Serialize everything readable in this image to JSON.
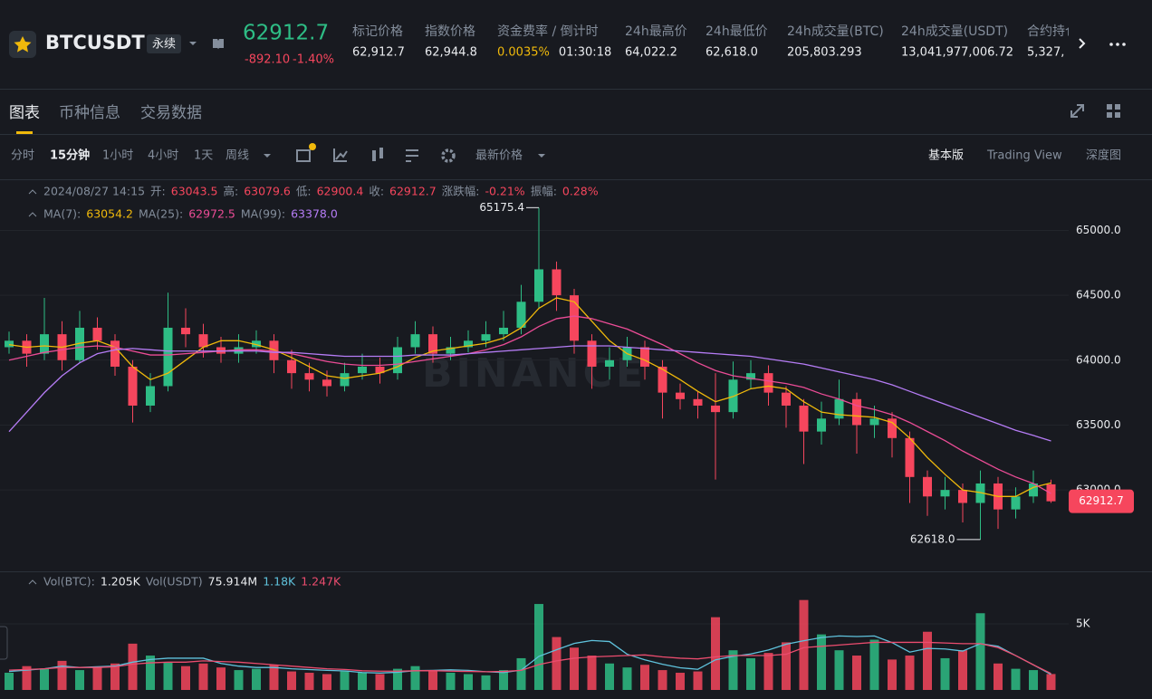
{
  "header": {
    "symbol": "BTCUSDT",
    "badge": "永续",
    "price": "62912.7",
    "change": "-892.10",
    "change_pct": "-1.40%",
    "stats": [
      {
        "label": "标记价格",
        "value": "62,912.7"
      },
      {
        "label": "指数价格",
        "value": "62,944.8"
      },
      {
        "label": "资金费率 / 倒计时",
        "value": "0.0035%",
        "value2": "01:30:18"
      },
      {
        "label": "24h最高价",
        "value": "64,022.2"
      },
      {
        "label": "24h最低价",
        "value": "62,618.0"
      },
      {
        "label": "24h成交量(BTC)",
        "value": "205,803.293"
      },
      {
        "label": "24h成交量(USDT)",
        "value": "13,041,977,006.72"
      },
      {
        "label": "合约持仓",
        "value": "5,327,"
      }
    ]
  },
  "tabs": [
    "图表",
    "币种信息",
    "交易数据"
  ],
  "toolbar": {
    "intervals": [
      "分时",
      "15分钟",
      "1小时",
      "4小时",
      "1天",
      "周线"
    ],
    "price_type": "最新价格",
    "views": [
      "基本版",
      "Trading View",
      "深度图"
    ]
  },
  "chart_data": {
    "type": "candlestick",
    "watermark": "BINANCE",
    "datetime": "2024/08/27 14:15",
    "info": [
      {
        "label": "开:",
        "value": "63043.5"
      },
      {
        "label": "高:",
        "value": "63079.6"
      },
      {
        "label": "低:",
        "value": "62900.4"
      },
      {
        "label": "收:",
        "value": "62912.7"
      },
      {
        "label": "涨跌幅:",
        "value": "-0.21%"
      },
      {
        "label": "振幅:",
        "value": "0.28%"
      }
    ],
    "up_color": "#2ebd85",
    "down_color": "#f6465d",
    "ylim": [
      62380,
      65380
    ],
    "yticks": [
      {
        "value": 63000,
        "label": "63000.0"
      },
      {
        "value": 63500,
        "label": "63500.0"
      },
      {
        "value": 64000,
        "label": "64000.0"
      },
      {
        "value": 64500,
        "label": "64500.0"
      },
      {
        "value": 65000,
        "label": "65000.0"
      }
    ],
    "extreme_labels": {
      "high": "65175.4",
      "low": "62618.0"
    },
    "ohlc": [
      [
        64100,
        64220,
        64050,
        64150
      ],
      [
        64150,
        64200,
        63950,
        64050
      ],
      [
        64050,
        64480,
        64000,
        64200
      ],
      [
        64200,
        64300,
        63920,
        64000
      ],
      [
        64000,
        64380,
        63980,
        64250
      ],
      [
        64250,
        64330,
        64080,
        64150
      ],
      [
        64150,
        64200,
        63880,
        63950
      ],
      [
        63950,
        64000,
        63520,
        63650
      ],
      [
        63650,
        63900,
        63600,
        63800
      ],
      [
        63800,
        64520,
        63760,
        64250
      ],
      [
        64250,
        64400,
        64100,
        64200
      ],
      [
        64200,
        64280,
        64020,
        64100
      ],
      [
        64100,
        64180,
        63980,
        64050
      ],
      [
        64050,
        64200,
        63980,
        64100
      ],
      [
        64100,
        64230,
        64050,
        64150
      ],
      [
        64150,
        64200,
        63900,
        64000
      ],
      [
        64000,
        64080,
        63780,
        63900
      ],
      [
        63900,
        63980,
        63760,
        63850
      ],
      [
        63850,
        63920,
        63720,
        63800
      ],
      [
        63800,
        63980,
        63760,
        63900
      ],
      [
        63900,
        64050,
        63850,
        63950
      ],
      [
        63950,
        64020,
        63820,
        63900
      ],
      [
        63900,
        64180,
        63850,
        64100
      ],
      [
        64100,
        64300,
        64050,
        64200
      ],
      [
        64200,
        64260,
        63980,
        64050
      ],
      [
        64050,
        64180,
        64000,
        64100
      ],
      [
        64100,
        64230,
        64060,
        64150
      ],
      [
        64150,
        64300,
        64100,
        64200
      ],
      [
        64200,
        64380,
        64150,
        64250
      ],
      [
        64250,
        64580,
        64200,
        64450
      ],
      [
        64450,
        65175.4,
        64400,
        64700
      ],
      [
        64700,
        64760,
        64380,
        64500
      ],
      [
        64500,
        64550,
        64050,
        64150
      ],
      [
        64150,
        64200,
        63780,
        63950
      ],
      [
        63950,
        64100,
        63850,
        64000
      ],
      [
        64000,
        64180,
        63950,
        64100
      ],
      [
        64100,
        64150,
        63850,
        63950
      ],
      [
        63950,
        64000,
        63550,
        63750
      ],
      [
        63750,
        63820,
        63620,
        63700
      ],
      [
        63700,
        63760,
        63550,
        63650
      ],
      [
        63650,
        63900,
        63080,
        63600
      ],
      [
        63600,
        63990,
        63550,
        63850
      ],
      [
        63850,
        64000,
        63780,
        63900
      ],
      [
        63900,
        63960,
        63650,
        63750
      ],
      [
        63750,
        63800,
        63480,
        63650
      ],
      [
        63650,
        63700,
        63200,
        63450
      ],
      [
        63450,
        63680,
        63350,
        63550
      ],
      [
        63550,
        63850,
        63500,
        63700
      ],
      [
        63700,
        63750,
        63280,
        63500
      ],
      [
        63500,
        63650,
        63400,
        63550
      ],
      [
        63550,
        63600,
        63250,
        63400
      ],
      [
        63400,
        63450,
        62900,
        63100
      ],
      [
        63100,
        63150,
        62800,
        62950
      ],
      [
        62950,
        63100,
        62850,
        63000
      ],
      [
        63000,
        63050,
        62750,
        62900
      ],
      [
        62900,
        63150,
        62618.0,
        63050
      ],
      [
        63050,
        63100,
        62700,
        62850
      ],
      [
        62850,
        63020,
        62780,
        62950
      ],
      [
        62950,
        63150,
        62900,
        63050
      ],
      [
        63043.5,
        63079.6,
        62900.4,
        62912.7
      ]
    ],
    "ma": [
      {
        "name": "MA(7):",
        "color": "#f0b90b",
        "value_label": "63054.2",
        "values": [
          64120,
          64100,
          64110,
          64100,
          64130,
          64150,
          64100,
          63950,
          63850,
          63900,
          64000,
          64100,
          64150,
          64150,
          64120,
          64080,
          64020,
          63950,
          63880,
          63860,
          63880,
          63900,
          63950,
          64020,
          64070,
          64090,
          64110,
          64130,
          64170,
          64250,
          64400,
          64480,
          64450,
          64300,
          64150,
          64050,
          64000,
          63930,
          63850,
          63760,
          63680,
          63720,
          63780,
          63800,
          63780,
          63680,
          63600,
          63580,
          63570,
          63560,
          63520,
          63400,
          63250,
          63120,
          63000,
          62980,
          62950,
          62950,
          63020,
          63054.2
        ]
      },
      {
        "name": "MA(25):",
        "color": "#eb4c96",
        "value_label": "62972.5",
        "values": [
          64000,
          64030,
          64060,
          64080,
          64100,
          64110,
          64100,
          64070,
          64040,
          64040,
          64050,
          64060,
          64070,
          64080,
          64080,
          64070,
          64050,
          64020,
          63990,
          63970,
          63960,
          63960,
          63970,
          63990,
          64010,
          64030,
          64050,
          64080,
          64120,
          64180,
          64260,
          64320,
          64340,
          64320,
          64280,
          64240,
          64180,
          64120,
          64050,
          63980,
          63920,
          63880,
          63860,
          63840,
          63820,
          63790,
          63740,
          63700,
          63650,
          63620,
          63580,
          63520,
          63450,
          63380,
          63300,
          63230,
          63160,
          63100,
          63050,
          62972.5
        ]
      },
      {
        "name": "MA(99):",
        "color": "#b57cf5",
        "value_label": "63378.0",
        "values": [
          63450,
          63600,
          63750,
          63880,
          63980,
          64050,
          64080,
          64090,
          64080,
          64070,
          64070,
          64070,
          64070,
          64070,
          64070,
          64060,
          64060,
          64050,
          64040,
          64030,
          64030,
          64030,
          64030,
          64040,
          64040,
          64040,
          64050,
          64060,
          64070,
          64080,
          64090,
          64100,
          64110,
          64110,
          64110,
          64100,
          64090,
          64080,
          64070,
          64060,
          64050,
          64040,
          64030,
          64010,
          63990,
          63970,
          63940,
          63910,
          63880,
          63850,
          63810,
          63760,
          63710,
          63660,
          63610,
          63560,
          63510,
          63460,
          63420,
          63378.0
        ]
      }
    ],
    "volume": {
      "name": "Vol(BTC):",
      "value_label": "1.205K",
      "usdt_name": "Vol(USDT)",
      "usdt_label": "75.914M",
      "ylim": [
        0,
        8900
      ],
      "yticks": [
        {
          "value": 5000,
          "label": "5K"
        }
      ],
      "values": [
        1300,
        1800,
        1600,
        2200,
        1500,
        1700,
        2000,
        3500,
        2600,
        2100,
        1800,
        2000,
        1700,
        1500,
        1600,
        1900,
        1400,
        1300,
        1200,
        1400,
        1300,
        1200,
        1600,
        1800,
        1500,
        1300,
        1200,
        1100,
        1500,
        2400,
        6500,
        4000,
        3200,
        2600,
        2000,
        1700,
        1900,
        1500,
        1300,
        1400,
        5500,
        3000,
        2400,
        2800,
        3600,
        6800,
        4200,
        3000,
        2600,
        3800,
        2300,
        2600,
        4400,
        2400,
        3000,
        5800,
        2000,
        1600,
        1500,
        1205
      ],
      "ma": [
        {
          "color": "#5fc2dc",
          "value_label": "1.18K",
          "values": [
            1400,
            1500,
            1600,
            1800,
            1700,
            1750,
            1800,
            2100,
            2300,
            2400,
            2400,
            2400,
            2000,
            1800,
            1700,
            1700,
            1600,
            1540,
            1480,
            1440,
            1320,
            1280,
            1340,
            1460,
            1480,
            1520,
            1480,
            1380,
            1320,
            1500,
            2540,
            3040,
            3520,
            3740,
            3660,
            2700,
            2280,
            1940,
            1680,
            1560,
            2280,
            2540,
            2720,
            3020,
            3460,
            3720,
            3960,
            4080,
            4040,
            4080,
            3580,
            2860,
            3140,
            3100,
            2940,
            3500,
            3300,
            2600,
            1900,
            1180
          ]
        },
        {
          "color": "#eb4c6e",
          "value_label": "1.247K",
          "values": [
            1500,
            1550,
            1600,
            1700,
            1700,
            1700,
            1750,
            1950,
            2050,
            2100,
            2100,
            2200,
            2150,
            2100,
            2000,
            1900,
            1800,
            1700,
            1600,
            1550,
            1450,
            1420,
            1420,
            1450,
            1460,
            1420,
            1400,
            1380,
            1400,
            1480,
            1920,
            2200,
            2400,
            2500,
            2550,
            2600,
            2650,
            2500,
            2400,
            2350,
            2500,
            2600,
            2600,
            2600,
            2700,
            3200,
            3300,
            3400,
            3500,
            3600,
            3600,
            3600,
            3600,
            3550,
            3500,
            3500,
            3200,
            2600,
            1900,
            1247
          ]
        }
      ]
    }
  }
}
